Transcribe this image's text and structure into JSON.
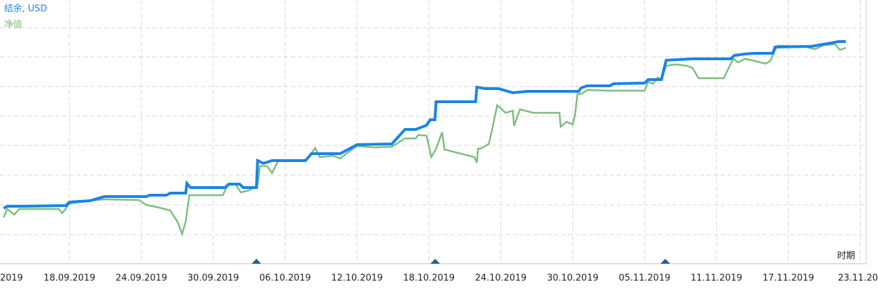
{
  "chart_data": {
    "type": "line",
    "x_label": "时期",
    "xlim": [
      0.2,
      72.5
    ],
    "xticks": [
      {
        "value": 0,
        "label": "2019"
      },
      {
        "value": 6,
        "label": "18.09.2019"
      },
      {
        "value": 12,
        "label": "24.09.2019"
      },
      {
        "value": 18,
        "label": "30.09.2019"
      },
      {
        "value": 24,
        "label": "06.10.2019"
      },
      {
        "value": 30,
        "label": "12.10.2019"
      },
      {
        "value": 36,
        "label": "18.10.2019"
      },
      {
        "value": 42,
        "label": "24.10.2019"
      },
      {
        "value": 48,
        "label": "30.10.2019"
      },
      {
        "value": 54,
        "label": "05.11.2019"
      },
      {
        "value": 60,
        "label": "11.11.2019"
      },
      {
        "value": 66,
        "label": "17.11.2019"
      },
      {
        "value": 72,
        "label": "23.11.20"
      }
    ],
    "ylim": [
      0,
      381
    ],
    "ygrid": [
      42,
      85,
      128,
      171,
      213,
      256,
      299,
      341
    ],
    "grid": true,
    "series": [
      {
        "name": "结余, USD",
        "color": "#1a84e6",
        "x": [
          0.5,
          0.8,
          2.0,
          5.7,
          6.0,
          7.7,
          8.9,
          12.4,
          12.7,
          14.1,
          14.4,
          15.7,
          15.8,
          16.1,
          19.0,
          19.3,
          20.2,
          20.5,
          21.6,
          21.7,
          22.2,
          22.9,
          25.7,
          26.2,
          27.4,
          28.6,
          30.0,
          32.9,
          34.0,
          34.9,
          35.8,
          36.1,
          36.5,
          36.6,
          39.9,
          40.0,
          40.7,
          41.8,
          43.0,
          44.2,
          48.5,
          48.7,
          49.2,
          51.1,
          51.4,
          54.0,
          54.3,
          55.4,
          55.8,
          58.0,
          61.2,
          61.5,
          62.4,
          63.2,
          64.7,
          64.9,
          67.9,
          69.6,
          70.2,
          70.8
        ],
        "values": [
          80,
          83,
          83,
          84,
          89,
          91,
          97,
          97,
          99,
          99,
          102,
          102,
          116,
          110,
          110,
          115,
          115,
          110,
          110,
          149,
          145,
          149,
          149,
          159,
          159,
          159,
          172,
          173,
          194,
          194,
          200,
          208,
          208,
          234,
          234,
          255,
          253,
          253,
          247,
          249,
          249,
          254,
          257,
          257,
          260,
          261,
          266,
          266,
          294,
          296,
          296,
          301,
          303,
          304,
          304,
          313,
          314,
          319,
          321,
          321
        ]
      },
      {
        "name": "净值",
        "color": "#7dbd7f",
        "x": [
          0.5,
          0.8,
          1.4,
          1.8,
          5.1,
          5.4,
          6.0,
          7.7,
          8.9,
          11.8,
          12.4,
          13.5,
          14.4,
          15.0,
          15.4,
          15.7,
          16.0,
          18.8,
          19.2,
          19.9,
          20.3,
          21.0,
          21.7,
          21.9,
          22.5,
          22.9,
          23.4,
          25.7,
          26.5,
          26.9,
          28.0,
          28.6,
          29.1,
          30.0,
          31.4,
          32.9,
          34.0,
          34.9,
          35.1,
          35.8,
          36.2,
          36.6,
          37.1,
          37.3,
          39.8,
          40.0,
          40.1,
          40.4,
          41.0,
          41.3,
          41.7,
          42.4,
          43.0,
          43.1,
          43.6,
          44.7,
          46.9,
          47.0,
          47.5,
          48.0,
          48.2,
          48.4,
          48.8,
          49.2,
          51.1,
          54.0,
          54.3,
          54.7,
          55.1,
          55.4,
          55.8,
          56.6,
          57.5,
          58.0,
          58.5,
          60.6,
          61.4,
          61.8,
          62.4,
          63.2,
          64.1,
          64.5,
          64.9,
          65.1,
          67.3,
          68.2,
          69.0,
          69.9,
          70.3,
          70.8
        ],
        "values": [
          67,
          79,
          71,
          79,
          79,
          73,
          87,
          91,
          93,
          92,
          85,
          81,
          77,
          61,
          43,
          61,
          99,
          99,
          114,
          114,
          103,
          106,
          113,
          141,
          141,
          131,
          148,
          148,
          167,
          154,
          156,
          152,
          159,
          170,
          168,
          169,
          181,
          181,
          186,
          185,
          154,
          166,
          190,
          165,
          154,
          146,
          166,
          167,
          173,
          196,
          229,
          218,
          221,
          199,
          223,
          218,
          218,
          198,
          205,
          201,
          216,
          245,
          246,
          251,
          250,
          250,
          263,
          260,
          269,
          266,
          286,
          288,
          286,
          283,
          268,
          268,
          296,
          291,
          296,
          293,
          289,
          293,
          309,
          315,
          314,
          310,
          316,
          317,
          309,
          312
        ]
      }
    ]
  }
}
